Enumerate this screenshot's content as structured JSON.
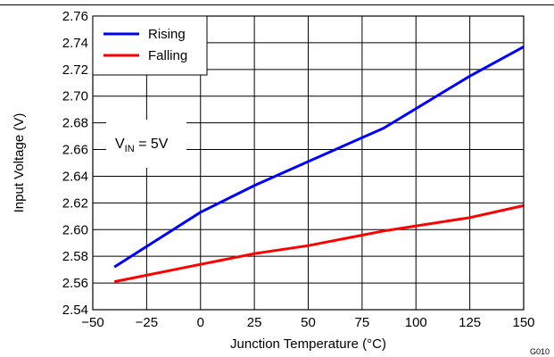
{
  "chart_data": {
    "type": "line",
    "xlabel": "Junction Temperature (°C)",
    "ylabel": "Input Voltage (V)",
    "xlim": [
      -50,
      150
    ],
    "ylim": [
      2.54,
      2.76
    ],
    "x_ticks": [
      "−50",
      "−25",
      "0",
      "25",
      "50",
      "75",
      "100",
      "125",
      "150"
    ],
    "y_ticks": [
      "2.54",
      "2.56",
      "2.58",
      "2.60",
      "2.62",
      "2.64",
      "2.66",
      "2.68",
      "2.70",
      "2.72",
      "2.74",
      "2.76"
    ],
    "grid": true,
    "legend_position": "top-left",
    "series": [
      {
        "name": "Rising",
        "color": "#0000ff",
        "x": [
          -40,
          0,
          25,
          50,
          85,
          125,
          150
        ],
        "y": [
          2.572,
          2.613,
          2.633,
          2.651,
          2.676,
          2.715,
          2.737
        ]
      },
      {
        "name": "Falling",
        "color": "#ff0000",
        "x": [
          -40,
          0,
          25,
          50,
          85,
          125,
          150
        ],
        "y": [
          2.561,
          2.574,
          2.582,
          2.588,
          2.599,
          2.609,
          2.618
        ]
      }
    ],
    "annotation": {
      "prefix": "V",
      "subscript": "IN",
      "suffix": " = 5V"
    },
    "graph_id": "G010"
  }
}
